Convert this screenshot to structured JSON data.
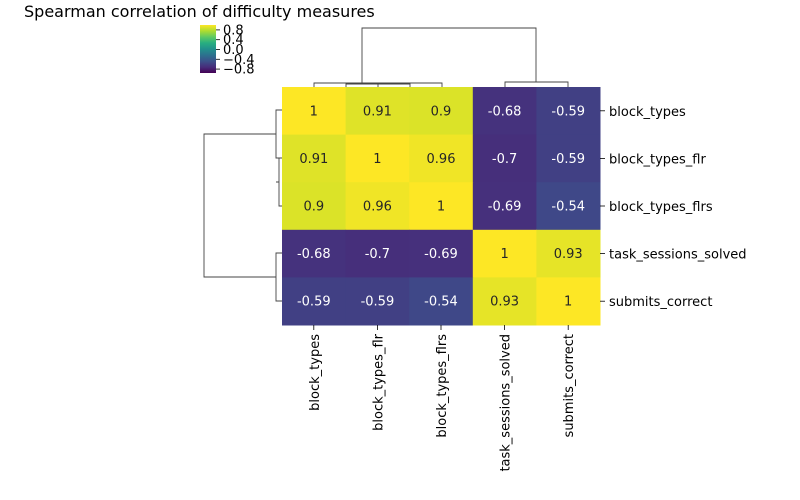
{
  "chart_data": {
    "type": "heatmap",
    "title": "Spearman correlation of difficulty measures",
    "rows": [
      "block_types",
      "block_types_flr",
      "block_types_flrs",
      "task_sessions_solved",
      "submits_correct"
    ],
    "columns": [
      "block_types",
      "block_types_flr",
      "block_types_flrs",
      "task_sessions_solved",
      "submits_correct"
    ],
    "values": [
      [
        1,
        0.91,
        0.9,
        -0.68,
        -0.59
      ],
      [
        0.91,
        1,
        0.96,
        -0.7,
        -0.59
      ],
      [
        0.9,
        0.96,
        1,
        -0.69,
        -0.54
      ],
      [
        -0.68,
        -0.7,
        -0.69,
        1,
        0.93
      ],
      [
        -0.59,
        -0.59,
        -0.54,
        0.93,
        1
      ]
    ],
    "colormap": "viridis",
    "vmin": -0.96,
    "vmax": 1.0,
    "colorbar_ticks": [
      {
        "value": 0.8,
        "label": "0.8"
      },
      {
        "value": 0.4,
        "label": "0.4"
      },
      {
        "value": 0.0,
        "label": "0.0"
      },
      {
        "value": -0.4,
        "label": "−0.4"
      },
      {
        "value": -0.8,
        "label": "−0.8"
      }
    ],
    "colorbar_position": "top-left",
    "dendrograms": "rows-left, columns-top",
    "grid": false
  }
}
